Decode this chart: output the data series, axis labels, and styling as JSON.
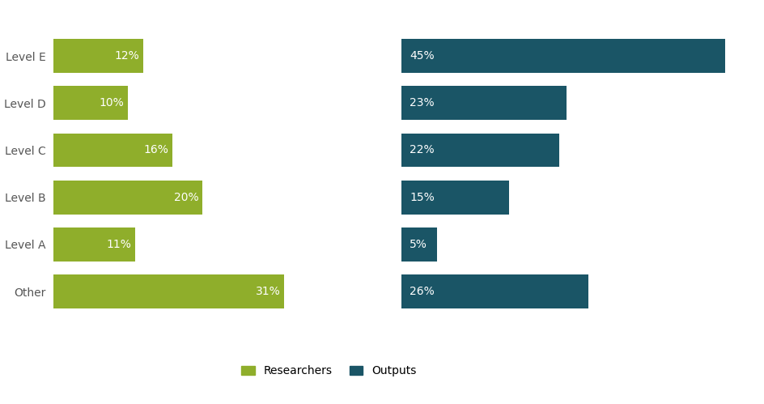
{
  "levels": [
    "Level E",
    "Level D",
    "Level C",
    "Level B",
    "Level A",
    "Other"
  ],
  "researchers": [
    12,
    10,
    16,
    20,
    11,
    31
  ],
  "outputs": [
    45,
    23,
    22,
    15,
    5,
    26
  ],
  "researcher_color": "#8fae2b",
  "output_color": "#1a5566",
  "bar_height": 0.72,
  "researcher_xlim": [
    0,
    35
  ],
  "output_xlim": [
    0,
    50
  ],
  "legend_labels": [
    "Researchers",
    "Outputs"
  ],
  "background_color": "#ffffff",
  "label_fontsize": 10,
  "tick_fontsize": 10,
  "legend_fontsize": 10
}
